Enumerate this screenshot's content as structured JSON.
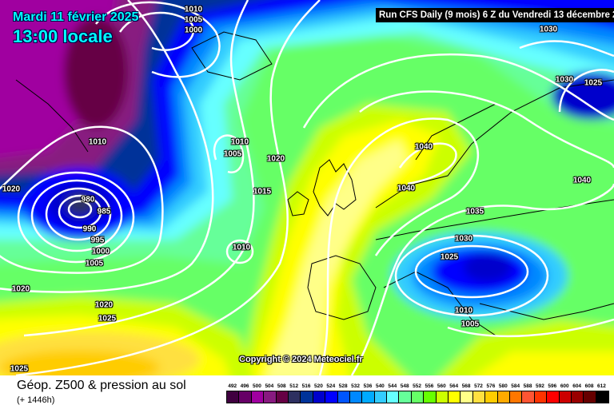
{
  "header": {
    "date": "Mardi 11 février 2025",
    "time": "13:00 locale",
    "run_info": "Run CFS Daily (9 mois) 6 Z du Vendredi 13 décembre 2",
    "copyright": "Copyright © 2024 Meteociel.fr"
  },
  "footer": {
    "title": "Géop. Z500 & pression au sol",
    "subtitle": "(+ 1446h)"
  },
  "legend": {
    "values": [
      "492",
      "496",
      "500",
      "504",
      "508",
      "512",
      "516",
      "520",
      "524",
      "528",
      "532",
      "536",
      "540",
      "544",
      "548",
      "552",
      "556",
      "560",
      "564",
      "568",
      "572",
      "576",
      "580",
      "584",
      "588",
      "592",
      "596",
      "600",
      "604",
      "608",
      "612"
    ],
    "colors": [
      "#400040",
      "#660066",
      "#a000a0",
      "#881a80",
      "#660044",
      "#2e3060",
      "#003399",
      "#0000cc",
      "#0000ff",
      "#0055ff",
      "#0088ff",
      "#00aaff",
      "#33ccff",
      "#66ffff",
      "#66ff99",
      "#66ff66",
      "#66ff00",
      "#ccff00",
      "#ffff00",
      "#ffff88",
      "#ffe040",
      "#ffcc00",
      "#ffaa00",
      "#ff7700",
      "#ff5533",
      "#ff3300",
      "#ff0000",
      "#cc0000",
      "#990000",
      "#660000",
      "#000000"
    ]
  },
  "pressure_labels": [
    "1010",
    "1005",
    "1000",
    "1030",
    "1030",
    "1025",
    "1010",
    "1010",
    "1005",
    "1020",
    "1040",
    "1020",
    "1015",
    "1040",
    "1040",
    "980",
    "985",
    "1035",
    "990",
    "995",
    "1000",
    "1030",
    "1005",
    "1010",
    "1025",
    "1020",
    "1020",
    "1010",
    "1025",
    "1005",
    "1025"
  ]
}
